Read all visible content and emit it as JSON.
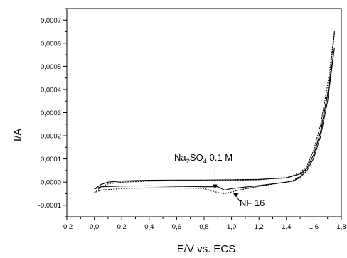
{
  "chart_data": {
    "type": "line",
    "xlabel": "E/V vs. ECS",
    "ylabel": "I/A",
    "xlim": [
      -0.2,
      1.8
    ],
    "ylim": [
      -0.00015,
      0.00075
    ],
    "x_ticks": [
      "-0,2",
      "0,0",
      "0,2",
      "0,4",
      "0,6",
      "0,8",
      "1,0",
      "1,2",
      "1,4",
      "1,6",
      "1,8"
    ],
    "y_ticks": [
      "-0,0001",
      "0,0000",
      "0,0001",
      "0,0002",
      "0,0003",
      "0,0004",
      "0,0005",
      "0,0006",
      "0,0007"
    ],
    "grid": false,
    "legend": "none",
    "annotations": [
      {
        "text": "Na",
        "sub1": "2",
        "mid": "SO",
        "sub2": "4",
        "tail": " 0.1 M",
        "target": [
          0.88,
          -3.5e-05
        ]
      },
      {
        "text": "NF 16",
        "target": [
          1.0,
          -3.5e-05
        ]
      }
    ],
    "series": [
      {
        "style": "solid",
        "x": [
          0.0,
          0.05,
          0.1,
          0.2,
          0.4,
          0.6,
          0.8,
          1.0,
          1.2,
          1.4,
          1.5,
          1.55,
          1.6,
          1.65,
          1.7,
          1.75,
          1.75,
          1.7,
          1.65,
          1.6,
          1.55,
          1.5,
          1.45,
          1.4,
          1.2,
          1.0,
          0.95,
          0.9,
          0.8,
          0.6,
          0.4,
          0.2,
          0.05,
          0.0
        ],
        "y": [
          -3e-05,
          -1e-05,
          0.0,
          5e-06,
          8e-06,
          9e-06,
          9e-06,
          1e-05,
          1.2e-05,
          1.8e-05,
          3.5e-05,
          6e-05,
          0.00012,
          0.00022,
          0.00038,
          0.00058,
          0.00058,
          0.00035,
          0.0002,
          0.000105,
          5e-05,
          2e-05,
          5e-06,
          0.0,
          -1.5e-05,
          -2.8e-05,
          -3.5e-05,
          -2e-05,
          -2e-05,
          -1.8e-05,
          -1.6e-05,
          -1.7e-05,
          -2e-05,
          -3e-05
        ]
      },
      {
        "style": "dotted",
        "x": [
          0.0,
          0.05,
          0.1,
          0.2,
          0.4,
          0.6,
          0.8,
          1.0,
          1.2,
          1.4,
          1.5,
          1.55,
          1.6,
          1.65,
          1.7,
          1.75,
          1.75,
          1.7,
          1.65,
          1.6,
          1.55,
          1.5,
          1.45,
          1.4,
          1.2,
          1.05,
          0.95,
          0.9,
          0.8,
          0.6,
          0.4,
          0.2,
          0.05,
          0.0
        ],
        "y": [
          -4.5e-05,
          -2e-05,
          -8e-06,
          0.0,
          4e-06,
          6e-06,
          6e-06,
          8e-06,
          1e-05,
          2e-05,
          4e-05,
          7e-05,
          0.00014,
          0.00025,
          0.00042,
          0.00065,
          0.00064,
          0.00038,
          0.00022,
          0.00012,
          6e-05,
          2.5e-05,
          8e-06,
          0.0,
          -1.8e-05,
          -3.5e-05,
          -5e-05,
          -4.5e-05,
          -2.8e-05,
          -2.5e-05,
          -2.5e-05,
          -2.8e-05,
          -3.5e-05,
          -4.5e-05
        ]
      }
    ]
  }
}
